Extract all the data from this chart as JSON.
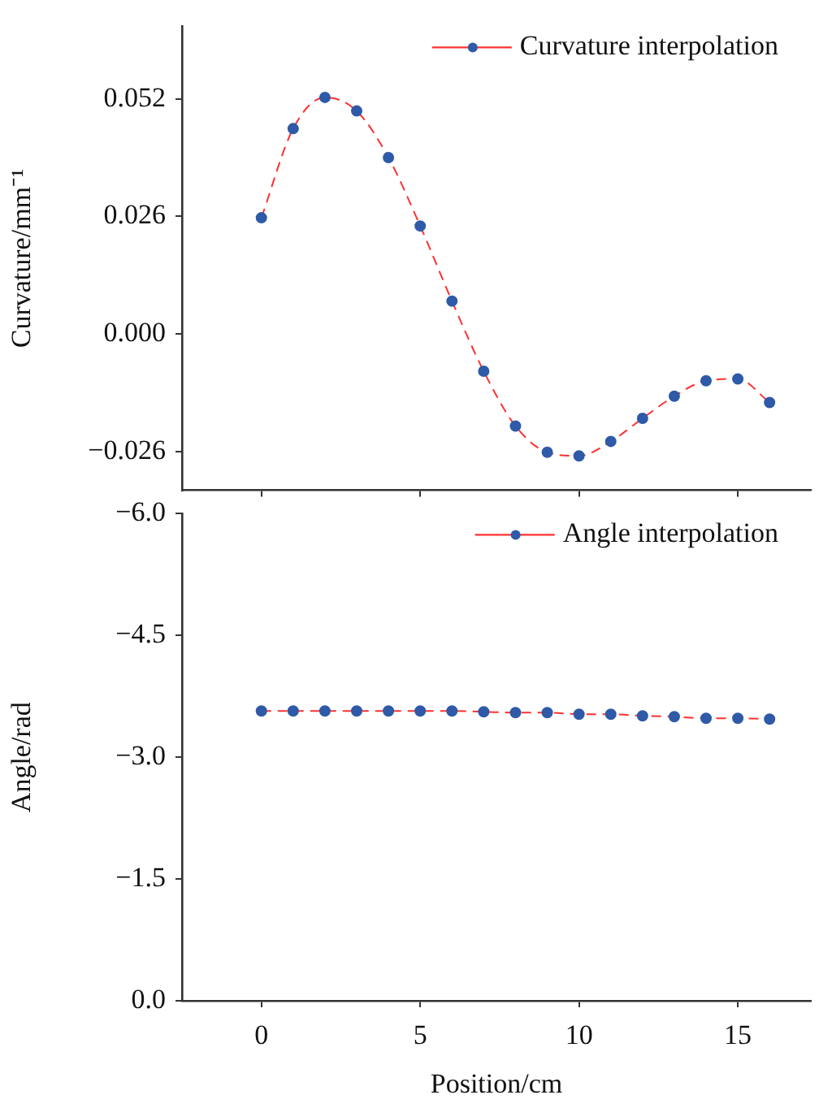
{
  "chart_data": [
    {
      "type": "line",
      "ylabel": "Curvature/mm⁻¹",
      "legend": "top right",
      "marker": "circle",
      "line_style": "dashed",
      "tick_labels": "y",
      "x": [
        0,
        1,
        2,
        3,
        4,
        5,
        6,
        7,
        8,
        9,
        10,
        11,
        12,
        13,
        14,
        15,
        16
      ],
      "series": [
        {
          "name": "Curvature interpolation",
          "color": "#ff3030",
          "colors": [
            "#2e5aa8",
            "#2e5aa8",
            "#2e5aa8",
            "#2e5aa8",
            "#2e5aa8",
            "#2e5aa8",
            "#2e5aa8",
            "#2e5aa8",
            "#2e5aa8",
            "#2e5aa8",
            "#2e5aa8",
            "#2e5aa8",
            "#2e5aa8",
            "#2e5aa8",
            "#2e5aa8",
            "#2e5aa8",
            "#2e5aa8"
          ],
          "values": [
            0.0257,
            0.0454,
            0.0523,
            0.0493,
            0.039,
            0.0239,
            0.0073,
            -0.0082,
            -0.0203,
            -0.0261,
            -0.0269,
            -0.0237,
            -0.0186,
            -0.0137,
            -0.0103,
            -0.0099,
            -0.0151
          ]
        }
      ],
      "xlim": [
        -2.5,
        17.3
      ],
      "xticks": [
        0,
        5,
        10,
        15
      ],
      "ylim": [
        -0.0345,
        0.068
      ],
      "yticks": [
        {
          "value": -0.026,
          "label": "−0.026"
        },
        {
          "value": 0,
          "label": "0.000"
        },
        0.026,
        0.052
      ]
    },
    {
      "type": "line",
      "xlabel": "Position/cm",
      "ylabel": "Angle/rad",
      "legend": "top right",
      "marker": "circle",
      "line_style": "dashed",
      "x": [
        0,
        1,
        2,
        3,
        4,
        5,
        6,
        7,
        8,
        9,
        10,
        11,
        12,
        13,
        14,
        15,
        16
      ],
      "series": [
        {
          "name": "Angle interpolation",
          "color": "#ff3030",
          "colors": [
            "#2e5aa8",
            "#2e5aa8",
            "#2e5aa8",
            "#2e5aa8",
            "#2e5aa8",
            "#2e5aa8",
            "#2e5aa8",
            "#2e5aa8",
            "#2e5aa8",
            "#2e5aa8",
            "#2e5aa8",
            "#2e5aa8",
            "#2e5aa8",
            "#2e5aa8",
            "#2e5aa8",
            "#2e5aa8",
            "#2e5aa8"
          ],
          "values": [
            -3.57,
            -3.57,
            -3.57,
            -3.57,
            -3.57,
            -3.57,
            -3.57,
            -3.56,
            -3.55,
            -3.55,
            -3.53,
            -3.53,
            -3.51,
            -3.5,
            -3.48,
            -3.48,
            -3.47
          ]
        }
      ],
      "xlim": [
        -2.5,
        17.3
      ],
      "xticks": [
        0,
        5,
        10,
        15
      ],
      "ylim": [
        0,
        -6
      ],
      "yticks": [
        {
          "value": 0,
          "label": "0.0"
        },
        {
          "value": -1.5,
          "label": "−1.5"
        },
        {
          "value": -3,
          "label": "−3.0"
        },
        {
          "value": -4.5,
          "label": "−4.5"
        },
        {
          "value": -6,
          "label": "−6.0"
        }
      ]
    }
  ]
}
